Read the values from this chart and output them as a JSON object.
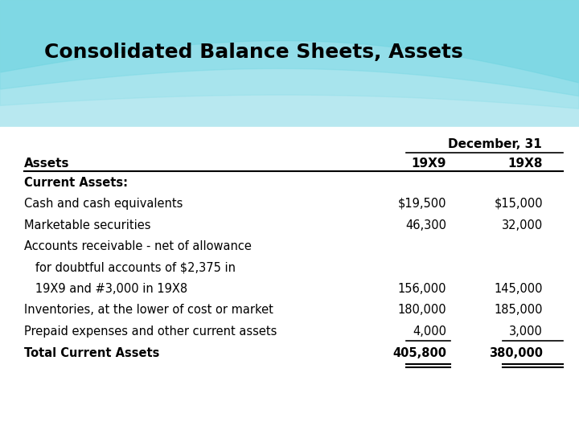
{
  "title": "Consolidated Balance Sheets, Assets",
  "header_group": "December, 31",
  "col_headers": [
    "Assets",
    "19X9",
    "19X8"
  ],
  "rows": [
    {
      "label": "Current Assets:",
      "val1": "",
      "val2": "",
      "bold": true
    },
    {
      "label": "Cash and cash equivalents",
      "val1": "$19,500",
      "val2": "$15,000",
      "bold": false
    },
    {
      "label": "Marketable securities",
      "val1": "46,300",
      "val2": "32,000",
      "bold": false
    },
    {
      "label": "Accounts receivable - net of allowance",
      "val1": "",
      "val2": "",
      "bold": false
    },
    {
      "label": "   for doubtful accounts of $2,375 in",
      "val1": "",
      "val2": "",
      "bold": false
    },
    {
      "label": "   19X9 and #3,000 in 19X8",
      "val1": "156,000",
      "val2": "145,000",
      "bold": false
    },
    {
      "label": "Inventories, at the lower of cost or market",
      "val1": "180,000",
      "val2": "185,000",
      "bold": false
    },
    {
      "label": "Prepaid expenses and other current assets",
      "val1": "4,000",
      "val2": "3,000",
      "bold": false
    },
    {
      "label": "Total Current Assets",
      "val1": "405,800",
      "val2": "380,000",
      "bold": true
    }
  ],
  "title_fontsize": 18,
  "table_fontsize": 10.5,
  "header_fontsize": 11,
  "wave_colors": [
    "#7dd8e6",
    "#a8e4ef",
    "#c5ecf4",
    "#e0f4f8"
  ],
  "bg_white": "#ffffff"
}
